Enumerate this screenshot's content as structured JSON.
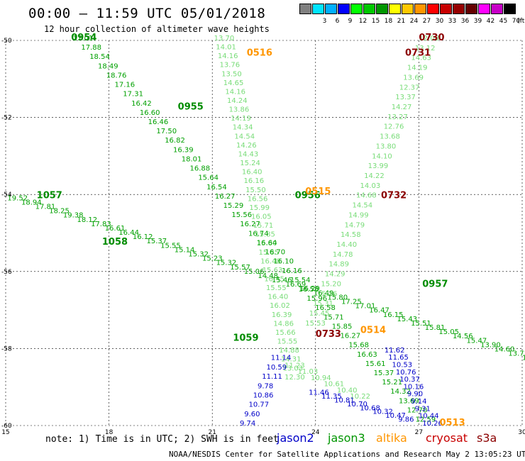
{
  "header": {
    "title": "00:00 – 11:59 UTC 05/01/2018",
    "subtitle": "12 hour collection of altimeter wave heights"
  },
  "colorbar": {
    "boxes": [
      {
        "color": "#808080",
        "label": ""
      },
      {
        "color": "#00e5ff",
        "label": "3"
      },
      {
        "color": "#00b0ff",
        "label": "6"
      },
      {
        "color": "#0000ff",
        "label": "9"
      },
      {
        "color": "#00ff00",
        "label": "12"
      },
      {
        "color": "#00c800",
        "label": "15"
      },
      {
        "color": "#009600",
        "label": "18"
      },
      {
        "color": "#ffff00",
        "label": "21"
      },
      {
        "color": "#ffc800",
        "label": "24"
      },
      {
        "color": "#ff9600",
        "label": "27"
      },
      {
        "color": "#ff0000",
        "label": "30"
      },
      {
        "color": "#c80000",
        "label": "33"
      },
      {
        "color": "#960000",
        "label": "36"
      },
      {
        "color": "#640000",
        "label": "39"
      },
      {
        "color": "#ff00ff",
        "label": "42"
      },
      {
        "color": "#c800c8",
        "label": "45"
      },
      {
        "color": "#000000",
        "label": "70"
      }
    ],
    "unit": "(ft)"
  },
  "axes": {
    "xlim": [
      15,
      30
    ],
    "ylim": [
      -60,
      -50
    ],
    "xticks": [
      "15",
      "18",
      "21",
      "24",
      "27",
      "30"
    ],
    "xtick_values": [
      15,
      18,
      21,
      24,
      27,
      30
    ],
    "yticks": [
      "-50",
      "-52",
      "-54",
      "-56",
      "-58",
      "-60"
    ],
    "ytick_values": [
      -50,
      -52,
      -54,
      -56,
      -58,
      -60
    ]
  },
  "colors": {
    "jason2": "#0000c8",
    "jason3": "#009600",
    "altika": "#ff9600",
    "cryosat": "#c80000",
    "s3a": "#8b0000",
    "light_green": "#64dc64",
    "mid_green": "#00b400"
  },
  "tracks": {
    "0954": {
      "label": "0954",
      "label_lon": 16.9,
      "label_lat": -50.0,
      "label_color": "#008c00",
      "start": [
        16.95,
        -50.0
      ],
      "end": [
        26.9,
        -59.9
      ],
      "color": "#00a000",
      "values": [
        "17.01",
        "17.88",
        "18.54",
        "18.49",
        "18.76",
        "17.16",
        "17.31",
        "16.42",
        "16.60",
        "16.46",
        "17.50",
        "16.82",
        "16.39",
        "18.01",
        "16.88",
        "15.64",
        "16.54",
        "16.27",
        "15.29",
        "15.56",
        "16.27",
        "16.74",
        "16.64",
        "16.70",
        "16.10",
        "16.16",
        "15.54",
        "16.58",
        "15.96",
        "16.58",
        "15.71",
        "15.85",
        "16.27",
        "15.68",
        "16.63",
        "15.61",
        "15.37",
        "15.21",
        "14.32",
        "13.69",
        "12.70",
        "12.59"
      ],
      "mid_label": {
        "text": "0955",
        "lon": 20.0,
        "lat": -51.8
      }
    },
    "1057": {
      "label": "1057",
      "label_lon": 15.9,
      "label_lat": -54.1,
      "label_color": "#008c00",
      "start": [
        15.05,
        -54.15
      ],
      "end": [
        30.0,
        -58.3
      ],
      "color": "#00a000",
      "values": [
        "19.52",
        "18.94",
        "17.81",
        "18.25",
        "19.38",
        "18.12",
        "17.83",
        "16.61",
        "16.44",
        "16.12",
        "15.37",
        "15.55",
        "15.14",
        "15.32",
        "15.23",
        "15.32",
        "15.57",
        "15.06",
        "14.48",
        "15.46",
        "16.69",
        "16.29",
        "16.49",
        "15.80",
        "17.25",
        "17.01",
        "16.47",
        "16.15",
        "15.43",
        "15.51",
        "15.81",
        "15.05",
        "14.56",
        "15.47",
        "13.90",
        "14.60",
        "13.71",
        "11"
      ],
      "mid_label": {
        "text": "1058",
        "lon": 17.8,
        "lat": -55.3
      }
    },
    "0957": {
      "label": "0957",
      "label_lon": 27.1,
      "label_lat": -56.4,
      "label_color": "#008c00"
    },
    "0956": {
      "label": "0956",
      "label_lon": 23.4,
      "label_lat": -54.1,
      "label_color": "#008c00"
    },
    "0516": {
      "label": "0516",
      "label_lon": 22.0,
      "label_lat": -50.4,
      "label_color": "#ff9600",
      "start": [
        21.05,
        -50.0
      ],
      "end": [
        23.1,
        -58.8
      ],
      "color": "#78dc78",
      "values": [
        "13.70",
        "14.01",
        "14.16",
        "13.76",
        "13.50",
        "14.65",
        "14.16",
        "14.24",
        "13.86",
        "14.19",
        "14.34",
        "14.54",
        "14.26",
        "14.43",
        "15.24",
        "16.40",
        "16.16",
        "15.50",
        "16.56",
        "15.99",
        "16.05",
        "15.71",
        "15.85",
        "15.80",
        "15.85",
        "16.48",
        "15.63",
        "16.45",
        "15.55",
        "16.40",
        "16.02",
        "16.39",
        "14.86",
        "15.66",
        "15.55",
        "14.88",
        "14.31",
        "13.03",
        "12.30"
      ]
    },
    "0515": {
      "label": "0515",
      "label_lon": 23.7,
      "label_lat": -54.0,
      "label_color": "#ff9600"
    },
    "0514": {
      "label": "0514",
      "label_lon": 25.3,
      "label_lat": -57.6,
      "label_color": "#ff9600"
    },
    "0513": {
      "label": "0513",
      "label_lon": 27.6,
      "label_lat": -60.0,
      "label_color": "#ff9600"
    },
    "0730": {
      "label": "0730",
      "label_lon": 27.0,
      "label_lat": -50.0,
      "label_color": "#8b0000",
      "start": [
        27.0,
        -50.0
      ],
      "end": [
        23.7,
        -57.4
      ],
      "color": "#78dc78",
      "values": [
        "12.08",
        "13.12",
        "14.63",
        "14.19",
        "13.69",
        "12.37",
        "13.37",
        "14.27",
        "13.27",
        "12.76",
        "13.68",
        "13.80",
        "14.10",
        "13.99",
        "14.22",
        "14.03",
        "14.68",
        "14.54",
        "14.99",
        "14.79",
        "14.58",
        "14.40",
        "14.78",
        "14.89",
        "14.29",
        "15.20",
        "15.26",
        "15.31",
        "15.45",
        "15.53"
      ],
      "mid_label": {
        "text": "0731",
        "lon": 26.6,
        "lat": -50.4
      }
    },
    "0732": {
      "label": "0732",
      "label_lon": 25.9,
      "label_lat": -54.1,
      "label_color": "#8b0000"
    },
    "0733": {
      "label": "0733",
      "label_lon": 24.0,
      "label_lat": -57.7,
      "label_color": "#8b0000"
    },
    "1059": {
      "label": "1059",
      "label_lon": 21.6,
      "label_lat": -57.8,
      "label_color": "#008c00"
    },
    "jason2_a": {
      "values": [
        "11.14",
        "10.59",
        "11.11",
        "9.78",
        "10.86",
        "10.77",
        "9.60",
        "9.74"
      ],
      "color": "#0000c8",
      "start": [
        22.7,
        -58.3
      ],
      "end": [
        21.8,
        -60.0
      ]
    },
    "jason2_b": {
      "values": [
        "11.62",
        "11.65",
        "10.53",
        "10.76",
        "10.37",
        "10.16",
        "9.90",
        "9.14",
        "9.31",
        "10.44",
        "10.26"
      ],
      "color": "#0000c8",
      "start": [
        26.0,
        -58.1
      ],
      "end": [
        27.1,
        -60.0
      ]
    },
    "jason2_c": {
      "values": [
        "11.46",
        "11.35",
        "10.81",
        "10.70",
        "10.68",
        "10.32",
        "10.47",
        "9.86"
      ],
      "color": "#0000c8",
      "start": [
        23.8,
        -59.2
      ],
      "end": [
        26.4,
        -59.9
      ]
    },
    "green_tail": {
      "values": [
        "11.23",
        "11.03",
        "10.94",
        "10.61",
        "10.40",
        "10.22"
      ],
      "color": "#78dc78",
      "start": [
        23.1,
        -58.5
      ],
      "end": [
        25.0,
        -59.3
      ]
    }
  },
  "footer": {
    "note": "note: 1) Time is in UTC; 2) SWH is in feet",
    "legend": [
      {
        "label": "jason2",
        "color": "#0000c8"
      },
      {
        "label": "jason3",
        "color": "#009600"
      },
      {
        "label": "altika",
        "color": "#ff9600"
      },
      {
        "label": "cryosat",
        "color": "#c80000"
      },
      {
        "label": "s3a",
        "color": "#8b0000"
      }
    ],
    "credit": "NOAA/NESDIS Center for Satellite Applications and Research   May  2 13:05:23 UTC 2018"
  }
}
